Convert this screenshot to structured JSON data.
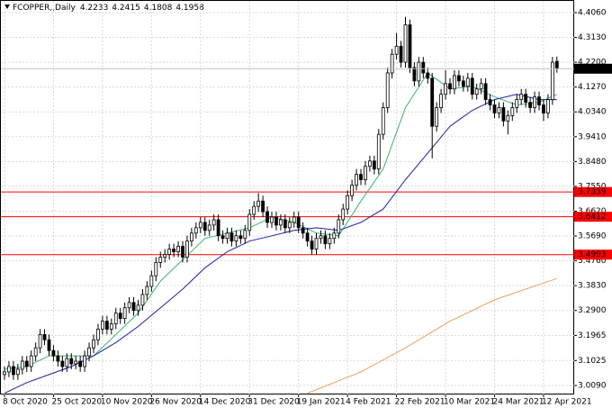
{
  "chart_data": {
    "type": "candlestick",
    "title": "FCOPPER,,Daily",
    "categories": [
      "8 Oct 2020",
      null,
      null,
      null,
      null,
      null,
      null,
      null,
      null,
      null,
      null,
      "25 Oct 2020",
      null,
      null,
      null,
      null,
      null,
      null,
      null,
      null,
      null,
      null,
      "10 Nov 2020",
      null,
      null,
      null,
      null,
      null,
      null,
      null,
      null,
      null,
      null,
      "26 Nov 2020",
      null,
      null,
      null,
      null,
      null,
      null,
      null,
      null,
      null,
      null,
      "14 Dec 2020",
      null,
      null,
      null,
      null,
      null,
      null,
      null,
      null,
      null,
      null,
      "31 Dec 2020",
      null,
      null,
      null,
      null,
      null,
      null,
      null,
      null,
      null,
      null,
      "19 Jan 2021",
      null,
      null,
      null,
      null,
      null,
      null,
      null,
      null,
      null,
      null,
      "4 Feb 2021",
      null,
      null,
      null,
      null,
      null,
      null,
      null,
      null,
      null,
      null,
      "22 Feb 2021",
      null,
      null,
      null,
      null,
      null,
      null,
      null,
      null,
      null,
      null,
      "10 Mar 2021",
      null,
      null,
      null,
      null,
      null,
      null,
      null,
      null,
      null,
      null,
      "24 Mar 2021",
      null,
      null,
      null,
      null,
      null,
      null,
      null,
      null,
      null,
      null,
      "12 Apr 2021",
      null,
      null,
      null
    ],
    "candles": [
      [
        3.05,
        3.08,
        3.03,
        3.06
      ],
      [
        3.06,
        3.1,
        3.04,
        3.08
      ],
      [
        3.08,
        3.1,
        3.03,
        3.05
      ],
      [
        3.05,
        3.09,
        3.03,
        3.07
      ],
      [
        3.07,
        3.12,
        3.05,
        3.1
      ],
      [
        3.1,
        3.12,
        3.06,
        3.08
      ],
      [
        3.08,
        3.14,
        3.06,
        3.12
      ],
      [
        3.12,
        3.17,
        3.1,
        3.15
      ],
      [
        3.15,
        3.22,
        3.13,
        3.2
      ],
      [
        3.2,
        3.22,
        3.16,
        3.18
      ],
      [
        3.18,
        3.2,
        3.12,
        3.14
      ],
      [
        3.14,
        3.16,
        3.1,
        3.12
      ],
      [
        3.12,
        3.14,
        3.08,
        3.1
      ],
      [
        3.1,
        3.12,
        3.06,
        3.08
      ],
      [
        3.08,
        3.13,
        3.06,
        3.11
      ],
      [
        3.11,
        3.13,
        3.07,
        3.09
      ],
      [
        3.09,
        3.12,
        3.07,
        3.1
      ],
      [
        3.1,
        3.12,
        3.06,
        3.08
      ],
      [
        3.08,
        3.14,
        3.06,
        3.12
      ],
      [
        3.12,
        3.17,
        3.1,
        3.15
      ],
      [
        3.15,
        3.2,
        3.13,
        3.18
      ],
      [
        3.18,
        3.24,
        3.16,
        3.22
      ],
      [
        3.22,
        3.27,
        3.2,
        3.25
      ],
      [
        3.25,
        3.27,
        3.2,
        3.22
      ],
      [
        3.22,
        3.26,
        3.2,
        3.24
      ],
      [
        3.24,
        3.3,
        3.22,
        3.28
      ],
      [
        3.28,
        3.3,
        3.24,
        3.26
      ],
      [
        3.26,
        3.32,
        3.24,
        3.3
      ],
      [
        3.3,
        3.34,
        3.28,
        3.32
      ],
      [
        3.32,
        3.34,
        3.27,
        3.29
      ],
      [
        3.29,
        3.33,
        3.27,
        3.31
      ],
      [
        3.31,
        3.37,
        3.29,
        3.35
      ],
      [
        3.35,
        3.4,
        3.33,
        3.38
      ],
      [
        3.38,
        3.44,
        3.36,
        3.42
      ],
      [
        3.42,
        3.49,
        3.4,
        3.47
      ],
      [
        3.47,
        3.51,
        3.45,
        3.49
      ],
      [
        3.49,
        3.52,
        3.47,
        3.5
      ],
      [
        3.5,
        3.54,
        3.48,
        3.52
      ],
      [
        3.52,
        3.54,
        3.49,
        3.51
      ],
      [
        3.51,
        3.55,
        3.49,
        3.53
      ],
      [
        3.53,
        3.55,
        3.47,
        3.49
      ],
      [
        3.49,
        3.57,
        3.47,
        3.55
      ],
      [
        3.55,
        3.6,
        3.53,
        3.58
      ],
      [
        3.58,
        3.62,
        3.56,
        3.6
      ],
      [
        3.6,
        3.64,
        3.58,
        3.62
      ],
      [
        3.62,
        3.64,
        3.57,
        3.59
      ],
      [
        3.59,
        3.63,
        3.57,
        3.61
      ],
      [
        3.61,
        3.65,
        3.59,
        3.63
      ],
      [
        3.63,
        3.65,
        3.55,
        3.57
      ],
      [
        3.57,
        3.59,
        3.54,
        3.56
      ],
      [
        3.56,
        3.6,
        3.54,
        3.58
      ],
      [
        3.58,
        3.6,
        3.53,
        3.55
      ],
      [
        3.55,
        3.59,
        3.53,
        3.57
      ],
      [
        3.57,
        3.59,
        3.54,
        3.56
      ],
      [
        3.56,
        3.61,
        3.54,
        3.59
      ],
      [
        3.59,
        3.67,
        3.57,
        3.65
      ],
      [
        3.65,
        3.7,
        3.63,
        3.68
      ],
      [
        3.68,
        3.73,
        3.66,
        3.7
      ],
      [
        3.7,
        3.72,
        3.64,
        3.66
      ],
      [
        3.66,
        3.68,
        3.6,
        3.62
      ],
      [
        3.62,
        3.66,
        3.6,
        3.64
      ],
      [
        3.64,
        3.66,
        3.59,
        3.61
      ],
      [
        3.61,
        3.65,
        3.59,
        3.63
      ],
      [
        3.63,
        3.65,
        3.58,
        3.6
      ],
      [
        3.6,
        3.64,
        3.58,
        3.62
      ],
      [
        3.62,
        3.66,
        3.6,
        3.64
      ],
      [
        3.64,
        3.66,
        3.58,
        3.6
      ],
      [
        3.6,
        3.62,
        3.56,
        3.58
      ],
      [
        3.58,
        3.6,
        3.53,
        3.55
      ],
      [
        3.55,
        3.57,
        3.5,
        3.52
      ],
      [
        3.52,
        3.58,
        3.5,
        3.56
      ],
      [
        3.56,
        3.59,
        3.54,
        3.57
      ],
      [
        3.57,
        3.59,
        3.52,
        3.54
      ],
      [
        3.54,
        3.58,
        3.52,
        3.56
      ],
      [
        3.56,
        3.6,
        3.54,
        3.58
      ],
      [
        3.58,
        3.65,
        3.56,
        3.63
      ],
      [
        3.63,
        3.69,
        3.61,
        3.67
      ],
      [
        3.67,
        3.74,
        3.65,
        3.72
      ],
      [
        3.72,
        3.78,
        3.7,
        3.76
      ],
      [
        3.76,
        3.82,
        3.74,
        3.8
      ],
      [
        3.8,
        3.82,
        3.76,
        3.78
      ],
      [
        3.78,
        3.85,
        3.76,
        3.83
      ],
      [
        3.83,
        3.87,
        3.81,
        3.85
      ],
      [
        3.85,
        3.87,
        3.8,
        3.82
      ],
      [
        3.82,
        3.97,
        3.8,
        3.95
      ],
      [
        3.95,
        4.07,
        3.93,
        4.05
      ],
      [
        4.05,
        4.2,
        4.03,
        4.18
      ],
      [
        4.18,
        4.27,
        4.16,
        4.25
      ],
      [
        4.25,
        4.33,
        4.23,
        4.28
      ],
      [
        4.28,
        4.3,
        4.2,
        4.22
      ],
      [
        4.22,
        4.39,
        4.2,
        4.36
      ],
      [
        4.36,
        4.38,
        4.18,
        4.2
      ],
      [
        4.2,
        4.22,
        4.13,
        4.15
      ],
      [
        4.15,
        4.24,
        4.13,
        4.22
      ],
      [
        4.22,
        4.24,
        4.16,
        4.18
      ],
      [
        4.18,
        4.2,
        4.14,
        4.16
      ],
      [
        4.16,
        4.18,
        3.86,
        3.98
      ],
      [
        3.98,
        4.07,
        3.96,
        4.05
      ],
      [
        4.05,
        4.12,
        4.03,
        4.1
      ],
      [
        4.1,
        4.19,
        4.08,
        4.14
      ],
      [
        4.14,
        4.16,
        4.1,
        4.12
      ],
      [
        4.12,
        4.19,
        4.1,
        4.17
      ],
      [
        4.17,
        4.19,
        4.13,
        4.15
      ],
      [
        4.15,
        4.17,
        4.11,
        4.13
      ],
      [
        4.13,
        4.18,
        4.11,
        4.16
      ],
      [
        4.16,
        4.18,
        4.08,
        4.1
      ],
      [
        4.1,
        4.14,
        4.08,
        4.12
      ],
      [
        4.12,
        4.16,
        4.1,
        4.14
      ],
      [
        4.14,
        4.16,
        4.06,
        4.08
      ],
      [
        4.08,
        4.1,
        4.04,
        4.06
      ],
      [
        4.06,
        4.08,
        4.01,
        4.03
      ],
      [
        4.03,
        4.07,
        4.01,
        4.05
      ],
      [
        4.05,
        4.07,
        3.98,
        4.0
      ],
      [
        4.0,
        4.04,
        3.95,
        4.02
      ],
      [
        4.02,
        4.07,
        4.0,
        4.05
      ],
      [
        4.05,
        4.1,
        4.03,
        4.08
      ],
      [
        4.08,
        4.12,
        4.06,
        4.1
      ],
      [
        4.1,
        4.12,
        4.05,
        4.07
      ],
      [
        4.07,
        4.09,
        4.03,
        4.05
      ],
      [
        4.05,
        4.11,
        4.03,
        4.09
      ],
      [
        4.09,
        4.11,
        4.04,
        4.06
      ],
      [
        4.06,
        4.08,
        4.0,
        4.03
      ],
      [
        4.03,
        4.1,
        4.01,
        4.08
      ],
      [
        4.08,
        4.24,
        4.06,
        4.22
      ],
      [
        4.2233,
        4.2415,
        4.1808,
        4.1958
      ]
    ],
    "overlays": [
      {
        "color": "#3cb371",
        "x": [
          0,
          5,
          10,
          15,
          20,
          25,
          30,
          35,
          40,
          45,
          50,
          55,
          60,
          65,
          70,
          75,
          80,
          85,
          90,
          95,
          100,
          105,
          110,
          115,
          120,
          124
        ],
        "values": [
          3.07,
          3.08,
          3.12,
          3.12,
          3.12,
          3.2,
          3.28,
          3.4,
          3.48,
          3.56,
          3.58,
          3.6,
          3.64,
          3.62,
          3.58,
          3.57,
          3.7,
          3.82,
          4.05,
          4.18,
          4.12,
          4.13,
          4.09,
          4.06,
          4.07,
          4.1
        ]
      },
      {
        "color": "#1e1ea0",
        "x": [
          0,
          5,
          10,
          15,
          20,
          25,
          30,
          35,
          40,
          45,
          50,
          55,
          60,
          65,
          70,
          75,
          80,
          85,
          90,
          95,
          100,
          105,
          110,
          115,
          120,
          124
        ],
        "values": [
          2.98,
          3.02,
          3.05,
          3.08,
          3.12,
          3.17,
          3.23,
          3.3,
          3.37,
          3.45,
          3.51,
          3.55,
          3.57,
          3.59,
          3.6,
          3.59,
          3.62,
          3.67,
          3.78,
          3.88,
          3.98,
          4.04,
          4.08,
          4.1,
          4.08,
          4.08
        ]
      },
      {
        "color": "#f0a060",
        "x": [
          68,
          80,
          90,
          100,
          110,
          124
        ],
        "values": [
          2.98,
          3.06,
          3.15,
          3.25,
          3.33,
          3.41
        ]
      }
    ],
    "hlines": [
      {
        "value": 3.7339,
        "color": "#ff0000"
      },
      {
        "value": 3.6412,
        "color": "#ff0000"
      },
      {
        "value": 3.4993,
        "color": "#ff0000"
      }
    ],
    "ylim": [
      2.9753,
      4.4532
    ],
    "yticks": [
      {
        "value": 4.406,
        "label": "4.4060"
      },
      {
        "value": 4.313,
        "label": "4.3130"
      },
      {
        "value": 4.22,
        "label": "4.2200"
      },
      {
        "value": 4.127,
        "label": "4.1270"
      },
      {
        "value": 4.034,
        "label": "4.0340"
      },
      {
        "value": 3.941,
        "label": "3.9410"
      },
      {
        "value": 3.848,
        "label": "3.8480"
      },
      {
        "value": 3.755,
        "label": "3.7550"
      },
      {
        "value": 3.662,
        "label": "3.6620"
      },
      {
        "value": 3.569,
        "label": "3.5690"
      },
      {
        "value": 3.476,
        "label": "3.4760"
      },
      {
        "value": 3.383,
        "label": "3.3830"
      },
      {
        "value": 3.29,
        "label": "3.2900"
      },
      3.1965,
      3.1025,
      {
        "value": 3.009,
        "label": "3.0090"
      }
    ],
    "grid": true
  }
}
